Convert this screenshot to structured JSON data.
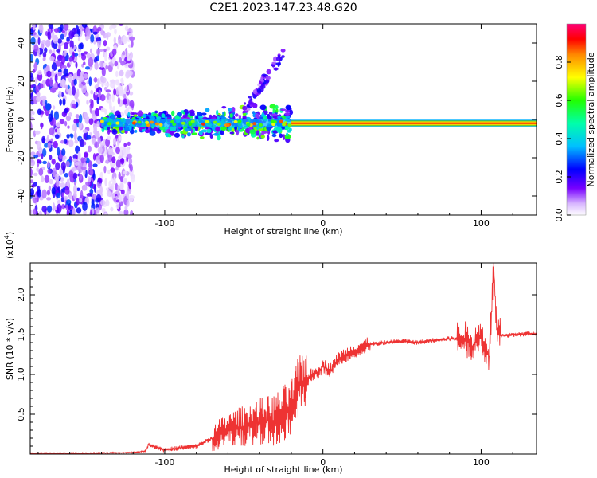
{
  "chart_data": [
    {
      "type": "heatmap",
      "title": "C2E1.2023.147.23.48.G20",
      "xlabel": "Height of straight line (km)",
      "ylabel": "Frequency (Hz)",
      "xlim": [
        -185,
        135
      ],
      "ylim": [
        -50,
        50
      ],
      "xticks": [
        -100,
        0,
        100
      ],
      "yticks": [
        -40,
        -20,
        0,
        20,
        40
      ],
      "colorbar": {
        "label": "Normalized spectral amplitude",
        "range": [
          0,
          1
        ],
        "ticks": [
          0.0,
          0.2,
          0.4,
          0.6,
          0.8
        ]
      },
      "features": [
        {
          "kind": "broadband_noise",
          "x_range": [
            -185,
            -120
          ],
          "freq_range": [
            -50,
            50
          ]
        },
        {
          "kind": "dominant_line",
          "x_range": [
            -140,
            135
          ],
          "frequency": -2,
          "peak_amplitude": 0.9
        },
        {
          "kind": "scattered_band",
          "x_range": [
            -140,
            -20
          ],
          "freq_range": [
            -15,
            10
          ]
        },
        {
          "kind": "diagonal_streak",
          "x_start": -50,
          "x_end": -25,
          "freq_start": 5,
          "freq_end": 35
        }
      ]
    },
    {
      "type": "line",
      "xlabel": "Height of straight line (km)",
      "ylabel": "SNR (10 * v/v)",
      "multiplier_label": "(x10",
      "multiplier_exponent": "4",
      "multiplier_close": ")",
      "xlim": [
        -185,
        135
      ],
      "ylim": [
        0,
        2.4
      ],
      "xticks": [
        -100,
        0,
        100
      ],
      "yticks": [
        0.5,
        1.0,
        1.5,
        2.0
      ],
      "ytick_labels": [
        "0.5",
        "1.0",
        "1.5",
        "2.0"
      ],
      "series": [
        {
          "color": "#ee3333",
          "x": [
            -185,
            -150,
            -120,
            -112,
            -110,
            -100,
            -90,
            -80,
            -70,
            -60,
            -50,
            -40,
            -30,
            -25,
            -20,
            -15,
            -10,
            -5,
            0,
            5,
            10,
            20,
            30,
            40,
            50,
            60,
            70,
            80,
            90,
            95,
            100,
            105,
            108,
            110,
            115,
            120,
            125,
            130,
            135
          ],
          "y": [
            0.01,
            0.01,
            0.02,
            0.04,
            0.12,
            0.05,
            0.08,
            0.1,
            0.2,
            0.3,
            0.35,
            0.4,
            0.42,
            0.5,
            0.55,
            0.85,
            0.95,
            1.0,
            1.1,
            1.05,
            1.2,
            1.3,
            1.38,
            1.4,
            1.42,
            1.4,
            1.43,
            1.45,
            1.45,
            1.35,
            1.48,
            1.2,
            2.35,
            1.5,
            1.48,
            1.5,
            1.5,
            1.52,
            1.5
          ],
          "noise_x_range": [
            -70,
            -10
          ]
        }
      ]
    }
  ]
}
